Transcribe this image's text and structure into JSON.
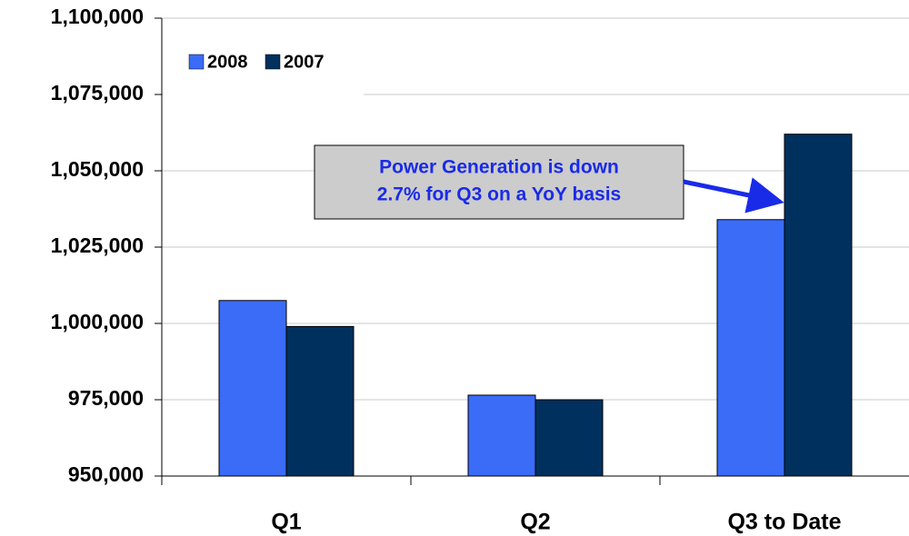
{
  "chart_data": {
    "type": "bar",
    "categories": [
      "Q1",
      "Q2",
      "Q3 to Date"
    ],
    "series": [
      {
        "name": "2008",
        "color": "#3a6cf7",
        "values": [
          1007500,
          976500,
          1034000
        ]
      },
      {
        "name": "2007",
        "color": "#00305e",
        "values": [
          999000,
          975000,
          1062000
        ]
      }
    ],
    "ylim": [
      950000,
      1100000
    ],
    "yticks": [
      {
        "value": 950000,
        "label": "950,000"
      },
      {
        "value": 975000,
        "label": "975,000"
      },
      {
        "value": 1000000,
        "label": "1,000,000"
      },
      {
        "value": 1025000,
        "label": "1,025,000"
      },
      {
        "value": 1050000,
        "label": "1,050,000"
      },
      {
        "value": 1075000,
        "label": "1,075,000"
      },
      {
        "value": 1100000,
        "label": "1,100,000"
      }
    ],
    "grid": true,
    "legend": "top-left",
    "annotation": [
      "Power Generation is down",
      "2.7% for Q3 on a YoY basis"
    ]
  }
}
